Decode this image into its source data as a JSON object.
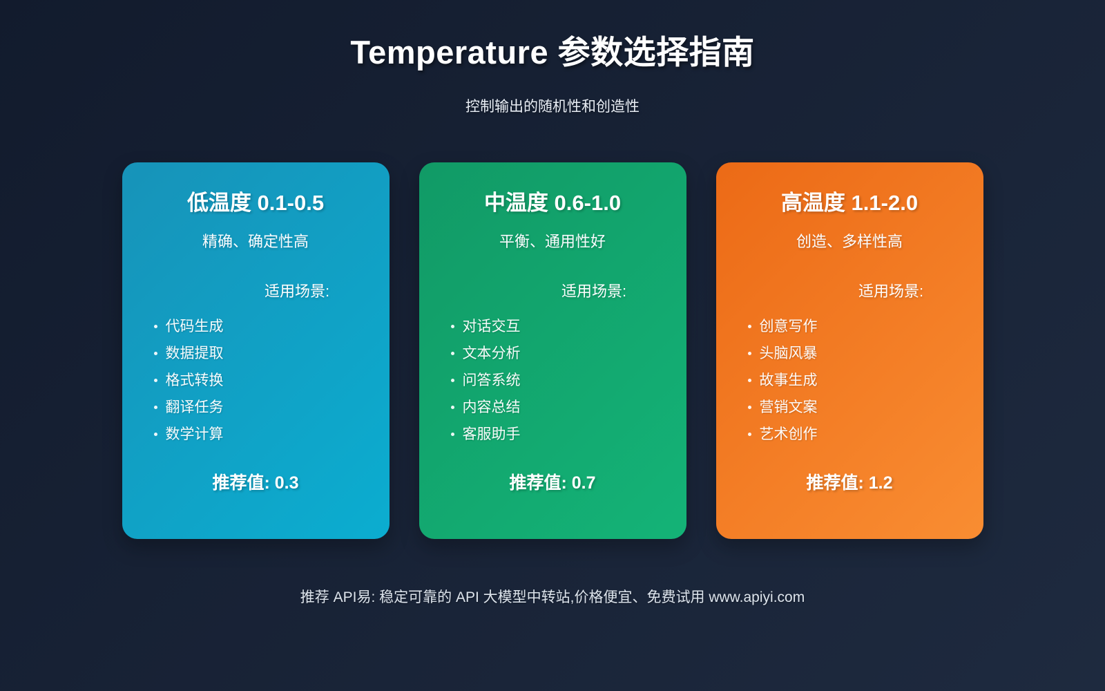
{
  "page": {
    "title": "Temperature 参数选择指南",
    "subtitle": "控制输出的随机性和创造性",
    "footer": "推荐 API易: 稳定可靠的 API 大模型中转站,价格便宜、免费试用 www.apiyi.com",
    "background": {
      "from": "#121b2d",
      "to": "#1e2a3f"
    }
  },
  "cards": [
    {
      "id": "low-temperature",
      "title": "低温度 0.1-0.5",
      "subtitle": "精确、确定性高",
      "scenario_label": "适用场景:",
      "items": [
        "代码生成",
        "数据提取",
        "格式转换",
        "翻译任务",
        "数学计算"
      ],
      "recommend": "推荐值: 0.3",
      "gradient": {
        "from": "#1793b9",
        "to": "#0badd0"
      }
    },
    {
      "id": "medium-temperature",
      "title": "中温度 0.6-1.0",
      "subtitle": "平衡、通用性好",
      "scenario_label": "适用场景:",
      "items": [
        "对话交互",
        "文本分析",
        "问答系统",
        "内容总结",
        "客服助手"
      ],
      "recommend": "推荐值: 0.7",
      "gradient": {
        "from": "#119a66",
        "to": "#14b377"
      }
    },
    {
      "id": "high-temperature",
      "title": "高温度 1.1-2.0",
      "subtitle": "创造、多样性高",
      "scenario_label": "适用场景:",
      "items": [
        "创意写作",
        "头脑风暴",
        "故事生成",
        "营销文案",
        "艺术创作"
      ],
      "recommend": "推荐值: 1.2",
      "gradient": {
        "from": "#ec6a16",
        "to": "#f98d32"
      }
    }
  ]
}
